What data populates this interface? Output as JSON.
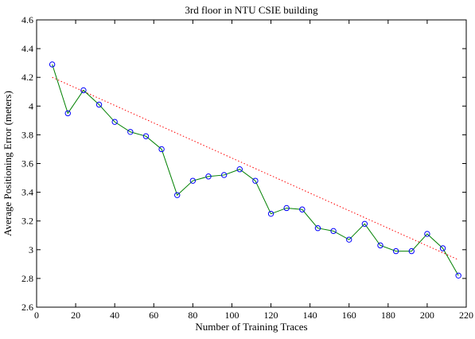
{
  "chart_data": {
    "type": "line",
    "title": "3rd floor in NTU CSIE building",
    "xlabel": "Number of Training Traces",
    "ylabel": "Average Positioning Error (meters)",
    "xlim": [
      0,
      220
    ],
    "ylim": [
      2.6,
      4.6
    ],
    "x_ticks": [
      0,
      20,
      40,
      60,
      80,
      100,
      120,
      140,
      160,
      180,
      200,
      220
    ],
    "y_ticks": [
      2.6,
      2.8,
      3.0,
      3.2,
      3.4,
      3.6,
      3.8,
      4.0,
      4.2,
      4.4,
      4.6
    ],
    "x_tick_labels": [
      "0",
      "20",
      "40",
      "60",
      "80",
      "100",
      "120",
      "140",
      "160",
      "180",
      "200",
      "220"
    ],
    "y_tick_labels": [
      "2.6",
      "2.8",
      "3",
      "3.2",
      "3.4",
      "3.6",
      "3.8",
      "4",
      "4.2",
      "4.4",
      "4.6"
    ],
    "grid": false,
    "legend": "none",
    "series": [
      {
        "style": "solid line with circle markers",
        "color": "#008000",
        "marker_color": "#0000ff",
        "x": [
          8,
          16,
          24,
          32,
          40,
          48,
          56,
          64,
          72,
          80,
          88,
          96,
          104,
          112,
          120,
          128,
          136,
          144,
          152,
          160,
          168,
          176,
          184,
          192,
          200,
          208,
          216
        ],
        "y": [
          4.29,
          3.95,
          4.11,
          4.01,
          3.89,
          3.82,
          3.79,
          3.7,
          3.38,
          3.48,
          3.51,
          3.52,
          3.56,
          3.48,
          3.25,
          3.29,
          3.28,
          3.15,
          3.13,
          3.07,
          3.18,
          3.03,
          2.99,
          2.99,
          3.11,
          3.01,
          2.82
        ]
      },
      {
        "style": "dotted trend line",
        "color": "#ff0000",
        "x": [
          8,
          216
        ],
        "y": [
          4.2,
          2.93
        ]
      }
    ]
  }
}
